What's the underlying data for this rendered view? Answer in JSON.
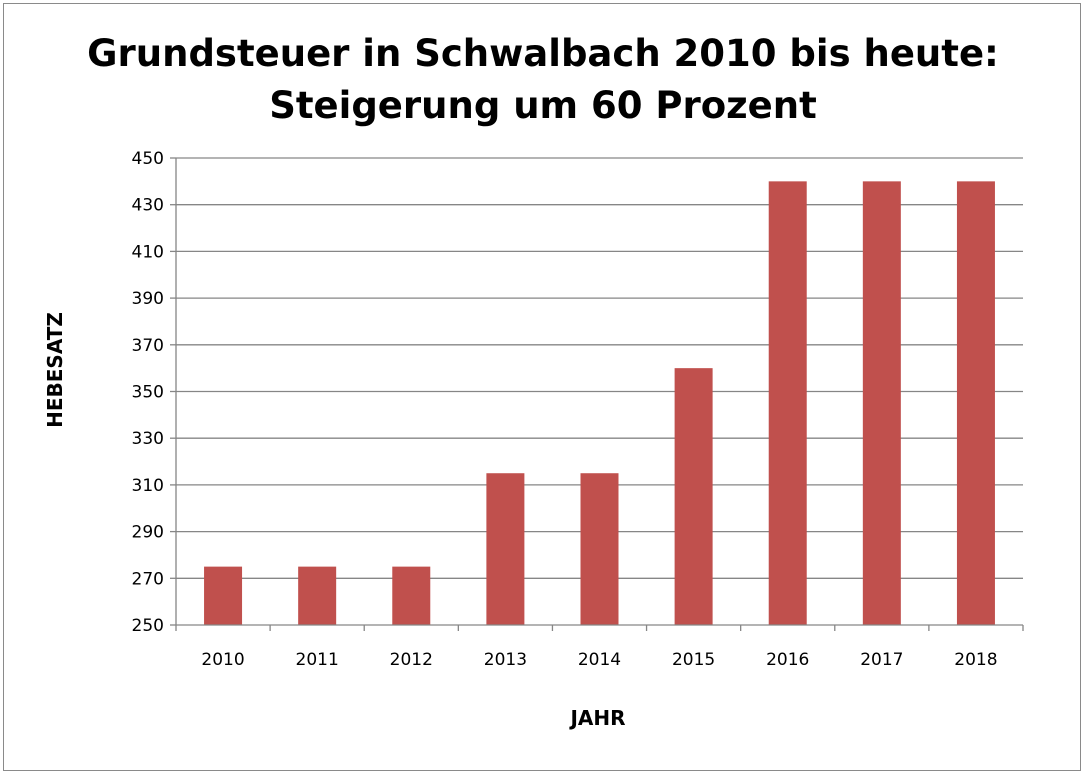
{
  "chart_data": {
    "type": "bar",
    "title": [
      "Grundsteuer in Schwalbach 2010 bis heute:",
      "Steigerung um 60 Prozent"
    ],
    "xlabel": "JAHR",
    "ylabel": "HEBESATZ",
    "categories": [
      "2010",
      "2011",
      "2012",
      "2013",
      "2014",
      "2015",
      "2016",
      "2017",
      "2018"
    ],
    "values": [
      275,
      275,
      275,
      315,
      315,
      360,
      440,
      440,
      440
    ],
    "ylim": [
      250,
      450
    ],
    "yticks": [
      250,
      270,
      290,
      310,
      330,
      350,
      370,
      390,
      410,
      430,
      450
    ],
    "grid": true,
    "legend": "none",
    "bar_color": "#c0504d",
    "grid_color": "#868686"
  }
}
